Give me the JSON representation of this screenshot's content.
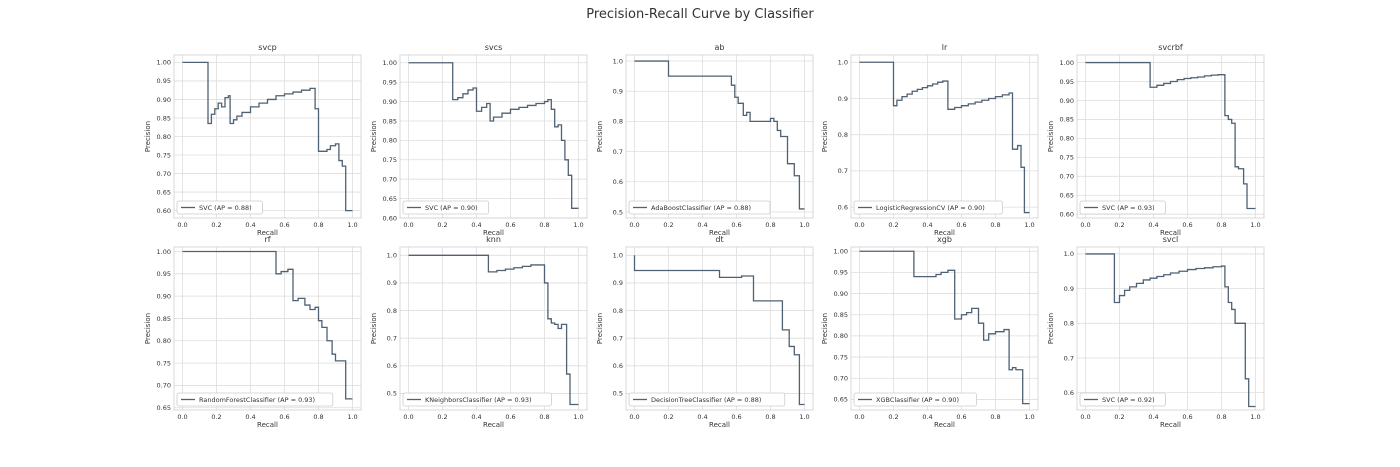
{
  "title": "Precision-Recall Curve by Classifier",
  "colors": {
    "curve": "#4f6172",
    "grid": "#dedede",
    "background": "#ffffff"
  },
  "chart_data": [
    {
      "type": "line",
      "title": "svcp",
      "xlabel": "Recall",
      "ylabel": "Precision",
      "legend": "SVC (AP = 0.88)",
      "legend_position": "lower-left",
      "grid": true,
      "xlim": [
        -0.05,
        1.05
      ],
      "ylim": [
        0.58,
        1.02
      ],
      "xticks": [
        0.0,
        0.2,
        0.4,
        0.6,
        0.8,
        1.0
      ],
      "xtick_labels": [
        "0.0",
        "0.2",
        "0.4",
        "0.6",
        "0.8",
        "1.0"
      ],
      "yticks": [
        0.6,
        0.65,
        0.7,
        0.75,
        0.8,
        0.85,
        0.9,
        0.95,
        1.0
      ],
      "ytick_labels": [
        "0.60",
        "0.65",
        "0.70",
        "0.75",
        "0.80",
        "0.85",
        "0.90",
        "0.95",
        "1.00"
      ],
      "recall": [
        0.0,
        0.15,
        0.15,
        0.17,
        0.19,
        0.21,
        0.23,
        0.25,
        0.27,
        0.28,
        0.3,
        0.32,
        0.35,
        0.4,
        0.45,
        0.5,
        0.55,
        0.6,
        0.65,
        0.7,
        0.75,
        0.78,
        0.78,
        0.8,
        0.85,
        0.87,
        0.9,
        0.92,
        0.94,
        0.96,
        0.98,
        1.0
      ],
      "precision": [
        1.0,
        1.0,
        0.835,
        0.86,
        0.875,
        0.89,
        0.88,
        0.905,
        0.91,
        0.835,
        0.845,
        0.855,
        0.865,
        0.88,
        0.89,
        0.9,
        0.91,
        0.915,
        0.92,
        0.925,
        0.93,
        0.93,
        0.875,
        0.76,
        0.765,
        0.775,
        0.78,
        0.735,
        0.72,
        0.6,
        0.6,
        0.6
      ]
    },
    {
      "type": "line",
      "title": "svcs",
      "xlabel": "Recall",
      "ylabel": "Precision",
      "legend": "SVC (AP = 0.90)",
      "legend_position": "lower-left",
      "grid": true,
      "xlim": [
        -0.05,
        1.05
      ],
      "ylim": [
        0.6,
        1.02
      ],
      "xticks": [
        0.0,
        0.2,
        0.4,
        0.6,
        0.8,
        1.0
      ],
      "xtick_labels": [
        "0.0",
        "0.2",
        "0.4",
        "0.6",
        "0.8",
        "1.0"
      ],
      "yticks": [
        0.6,
        0.65,
        0.7,
        0.75,
        0.8,
        0.85,
        0.9,
        0.95,
        1.0
      ],
      "ytick_labels": [
        "0.60",
        "0.65",
        "0.70",
        "0.75",
        "0.80",
        "0.85",
        "0.90",
        "0.95",
        "1.00"
      ],
      "recall": [
        0.0,
        0.26,
        0.26,
        0.29,
        0.32,
        0.35,
        0.38,
        0.4,
        0.43,
        0.46,
        0.48,
        0.5,
        0.55,
        0.6,
        0.65,
        0.7,
        0.75,
        0.8,
        0.82,
        0.84,
        0.86,
        0.88,
        0.9,
        0.92,
        0.94,
        0.96,
        0.98,
        1.0
      ],
      "precision": [
        1.0,
        1.0,
        0.905,
        0.91,
        0.92,
        0.93,
        0.935,
        0.875,
        0.885,
        0.895,
        0.85,
        0.86,
        0.87,
        0.88,
        0.885,
        0.89,
        0.895,
        0.9,
        0.905,
        0.88,
        0.835,
        0.84,
        0.8,
        0.75,
        0.71,
        0.625,
        0.625,
        0.625
      ]
    },
    {
      "type": "line",
      "title": "ab",
      "xlabel": "Recall",
      "ylabel": "Precision",
      "legend": "AdaBoostClassifier (AP = 0.88)",
      "legend_position": "lower-left",
      "grid": true,
      "xlim": [
        -0.05,
        1.05
      ],
      "ylim": [
        0.48,
        1.02
      ],
      "xticks": [
        0.0,
        0.2,
        0.4,
        0.6,
        0.8,
        1.0
      ],
      "xtick_labels": [
        "0.0",
        "0.2",
        "0.4",
        "0.6",
        "0.8",
        "1.0"
      ],
      "yticks": [
        0.5,
        0.6,
        0.7,
        0.8,
        0.9,
        1.0
      ],
      "ytick_labels": [
        "0.5",
        "0.6",
        "0.7",
        "0.8",
        "0.9",
        "1.0"
      ],
      "recall": [
        0.0,
        0.2,
        0.2,
        0.57,
        0.57,
        0.59,
        0.61,
        0.64,
        0.66,
        0.68,
        0.72,
        0.77,
        0.8,
        0.82,
        0.84,
        0.86,
        0.9,
        0.94,
        0.97,
        1.0
      ],
      "precision": [
        1.0,
        1.0,
        0.95,
        0.95,
        0.92,
        0.88,
        0.86,
        0.82,
        0.83,
        0.8,
        0.8,
        0.8,
        0.81,
        0.8,
        0.77,
        0.75,
        0.66,
        0.62,
        0.51,
        0.51
      ]
    },
    {
      "type": "line",
      "title": "lr",
      "xlabel": "Recall",
      "ylabel": "Precision",
      "legend": "LogisticRegressionCV (AP = 0.90)",
      "legend_position": "lower-left",
      "grid": true,
      "xlim": [
        -0.05,
        1.05
      ],
      "ylim": [
        0.57,
        1.02
      ],
      "xticks": [
        0.0,
        0.2,
        0.4,
        0.6,
        0.8,
        1.0
      ],
      "xtick_labels": [
        "0.0",
        "0.2",
        "0.4",
        "0.6",
        "0.8",
        "1.0"
      ],
      "yticks": [
        0.6,
        0.7,
        0.8,
        0.9,
        1.0
      ],
      "ytick_labels": [
        "0.6",
        "0.7",
        "0.8",
        "0.9",
        "1.0"
      ],
      "recall": [
        0.0,
        0.2,
        0.2,
        0.22,
        0.25,
        0.28,
        0.31,
        0.34,
        0.37,
        0.4,
        0.43,
        0.46,
        0.49,
        0.52,
        0.52,
        0.56,
        0.6,
        0.64,
        0.68,
        0.72,
        0.76,
        0.8,
        0.84,
        0.88,
        0.9,
        0.9,
        0.93,
        0.95,
        0.97,
        1.0
      ],
      "precision": [
        1.0,
        1.0,
        0.88,
        0.895,
        0.905,
        0.912,
        0.92,
        0.925,
        0.93,
        0.935,
        0.94,
        0.945,
        0.948,
        0.95,
        0.87,
        0.875,
        0.88,
        0.885,
        0.89,
        0.895,
        0.9,
        0.905,
        0.91,
        0.915,
        0.91,
        0.76,
        0.77,
        0.71,
        0.585,
        0.585
      ]
    },
    {
      "type": "line",
      "title": "svcrbf",
      "xlabel": "Recall",
      "ylabel": "Precision",
      "legend": "SVC (AP = 0.93)",
      "legend_position": "lower-left",
      "grid": true,
      "xlim": [
        -0.05,
        1.05
      ],
      "ylim": [
        0.59,
        1.02
      ],
      "xticks": [
        0.0,
        0.2,
        0.4,
        0.6,
        0.8,
        1.0
      ],
      "xtick_labels": [
        "0.0",
        "0.2",
        "0.4",
        "0.6",
        "0.8",
        "1.0"
      ],
      "yticks": [
        0.6,
        0.65,
        0.7,
        0.75,
        0.8,
        0.85,
        0.9,
        0.95,
        1.0
      ],
      "ytick_labels": [
        "0.60",
        "0.65",
        "0.70",
        "0.75",
        "0.80",
        "0.85",
        "0.90",
        "0.95",
        "1.00"
      ],
      "recall": [
        0.0,
        0.38,
        0.38,
        0.42,
        0.46,
        0.5,
        0.54,
        0.58,
        0.62,
        0.66,
        0.7,
        0.74,
        0.78,
        0.82,
        0.84,
        0.86,
        0.88,
        0.9,
        0.93,
        0.95,
        0.97,
        1.0
      ],
      "precision": [
        1.0,
        1.0,
        0.935,
        0.94,
        0.945,
        0.95,
        0.955,
        0.958,
        0.96,
        0.962,
        0.965,
        0.967,
        0.968,
        0.86,
        0.85,
        0.84,
        0.725,
        0.72,
        0.68,
        0.615,
        0.615,
        0.615
      ]
    },
    {
      "type": "line",
      "title": "rf",
      "xlabel": "Recall",
      "ylabel": "Precision",
      "legend": "RandomForestClassifier (AP = 0.93)",
      "legend_position": "lower-left",
      "grid": true,
      "xlim": [
        -0.05,
        1.05
      ],
      "ylim": [
        0.645,
        1.01
      ],
      "xticks": [
        0.0,
        0.2,
        0.4,
        0.6,
        0.8,
        1.0
      ],
      "xtick_labels": [
        "0.0",
        "0.2",
        "0.4",
        "0.6",
        "0.8",
        "1.0"
      ],
      "yticks": [
        0.65,
        0.7,
        0.75,
        0.8,
        0.85,
        0.9,
        0.95,
        1.0
      ],
      "ytick_labels": [
        "0.65",
        "0.70",
        "0.75",
        "0.80",
        "0.85",
        "0.90",
        "0.95",
        "1.00"
      ],
      "recall": [
        0.0,
        0.55,
        0.55,
        0.58,
        0.62,
        0.65,
        0.68,
        0.72,
        0.75,
        0.78,
        0.8,
        0.82,
        0.85,
        0.88,
        0.9,
        0.94,
        0.96,
        0.98,
        1.0
      ],
      "precision": [
        1.0,
        1.0,
        0.95,
        0.955,
        0.96,
        0.89,
        0.895,
        0.88,
        0.87,
        0.875,
        0.845,
        0.83,
        0.8,
        0.77,
        0.755,
        0.755,
        0.67,
        0.67,
        0.67
      ]
    },
    {
      "type": "line",
      "title": "knn",
      "xlabel": "Recall",
      "ylabel": "Precision",
      "legend": "KNeighborsClassifier (AP = 0.93)",
      "legend_position": "lower-left",
      "grid": true,
      "xlim": [
        -0.05,
        1.05
      ],
      "ylim": [
        0.44,
        1.03
      ],
      "xticks": [
        0.0,
        0.2,
        0.4,
        0.6,
        0.8,
        1.0
      ],
      "xtick_labels": [
        "0.0",
        "0.2",
        "0.4",
        "0.6",
        "0.8",
        "1.0"
      ],
      "yticks": [
        0.5,
        0.6,
        0.7,
        0.8,
        0.9,
        1.0
      ],
      "ytick_labels": [
        "0.5",
        "0.6",
        "0.7",
        "0.8",
        "0.9",
        "1.0"
      ],
      "recall": [
        0.0,
        0.47,
        0.47,
        0.52,
        0.57,
        0.62,
        0.67,
        0.72,
        0.77,
        0.8,
        0.82,
        0.84,
        0.86,
        0.88,
        0.9,
        0.93,
        0.95,
        0.97,
        1.0
      ],
      "precision": [
        1.0,
        1.0,
        0.94,
        0.945,
        0.95,
        0.955,
        0.96,
        0.965,
        0.965,
        0.9,
        0.77,
        0.755,
        0.75,
        0.735,
        0.75,
        0.57,
        0.46,
        0.46,
        0.46
      ]
    },
    {
      "type": "line",
      "title": "dt",
      "xlabel": "Recall",
      "ylabel": "Precision",
      "legend": "DecisionTreeClassifier (AP = 0.88)",
      "legend_position": "lower-left",
      "grid": true,
      "xlim": [
        -0.05,
        1.05
      ],
      "ylim": [
        0.44,
        1.03
      ],
      "xticks": [
        0.0,
        0.2,
        0.4,
        0.6,
        0.8,
        1.0
      ],
      "xtick_labels": [
        "0.0",
        "0.2",
        "0.4",
        "0.6",
        "0.8",
        "1.0"
      ],
      "yticks": [
        0.5,
        0.6,
        0.7,
        0.8,
        0.9,
        1.0
      ],
      "ytick_labels": [
        "0.5",
        "0.6",
        "0.7",
        "0.8",
        "0.9",
        "1.0"
      ],
      "recall": [
        0.0,
        0.0,
        0.5,
        0.5,
        0.63,
        0.63,
        0.7,
        0.7,
        0.87,
        0.87,
        0.91,
        0.91,
        0.94,
        0.94,
        0.97,
        0.97,
        1.0
      ],
      "precision": [
        1.0,
        0.945,
        0.945,
        0.92,
        0.92,
        0.925,
        0.925,
        0.835,
        0.835,
        0.73,
        0.73,
        0.67,
        0.67,
        0.64,
        0.64,
        0.46,
        0.46
      ]
    },
    {
      "type": "line",
      "title": "xgb",
      "xlabel": "Recall",
      "ylabel": "Precision",
      "legend": "XGBClassifier (AP = 0.90)",
      "legend_position": "lower-left",
      "grid": true,
      "xlim": [
        -0.05,
        1.05
      ],
      "ylim": [
        0.625,
        1.01
      ],
      "xticks": [
        0.0,
        0.2,
        0.4,
        0.6,
        0.8,
        1.0
      ],
      "xtick_labels": [
        "0.0",
        "0.2",
        "0.4",
        "0.6",
        "0.8",
        "1.0"
      ],
      "yticks": [
        0.65,
        0.7,
        0.75,
        0.8,
        0.85,
        0.9,
        0.95,
        1.0
      ],
      "ytick_labels": [
        "0.65",
        "0.70",
        "0.75",
        "0.80",
        "0.85",
        "0.90",
        "0.95",
        "1.00"
      ],
      "recall": [
        0.0,
        0.32,
        0.32,
        0.42,
        0.45,
        0.48,
        0.52,
        0.56,
        0.56,
        0.6,
        0.63,
        0.66,
        0.7,
        0.73,
        0.73,
        0.76,
        0.8,
        0.85,
        0.88,
        0.9,
        0.92,
        0.96,
        0.98,
        1.0
      ],
      "precision": [
        1.0,
        1.0,
        0.94,
        0.94,
        0.945,
        0.95,
        0.955,
        0.955,
        0.84,
        0.85,
        0.855,
        0.865,
        0.83,
        0.79,
        0.79,
        0.805,
        0.81,
        0.815,
        0.72,
        0.725,
        0.72,
        0.64,
        0.64,
        0.64
      ]
    },
    {
      "type": "line",
      "title": "svcl",
      "xlabel": "Recall",
      "ylabel": "Precision",
      "legend": "SVC (AP = 0.92)",
      "legend_position": "lower-left",
      "grid": true,
      "xlim": [
        -0.05,
        1.05
      ],
      "ylim": [
        0.55,
        1.02
      ],
      "xticks": [
        0.0,
        0.2,
        0.4,
        0.6,
        0.8,
        1.0
      ],
      "xtick_labels": [
        "0.0",
        "0.2",
        "0.4",
        "0.6",
        "0.8",
        "1.0"
      ],
      "yticks": [
        0.6,
        0.7,
        0.8,
        0.9,
        1.0
      ],
      "ytick_labels": [
        "0.6",
        "0.7",
        "0.8",
        "0.9",
        "1.0"
      ],
      "recall": [
        0.0,
        0.17,
        0.17,
        0.2,
        0.23,
        0.26,
        0.3,
        0.34,
        0.38,
        0.42,
        0.46,
        0.5,
        0.55,
        0.6,
        0.65,
        0.7,
        0.75,
        0.8,
        0.82,
        0.84,
        0.86,
        0.88,
        0.9,
        0.94,
        0.96,
        1.0
      ],
      "precision": [
        1.0,
        1.0,
        0.86,
        0.88,
        0.895,
        0.905,
        0.915,
        0.925,
        0.93,
        0.935,
        0.94,
        0.945,
        0.95,
        0.955,
        0.958,
        0.96,
        0.963,
        0.965,
        0.905,
        0.86,
        0.84,
        0.8,
        0.8,
        0.64,
        0.56,
        0.56
      ]
    }
  ]
}
